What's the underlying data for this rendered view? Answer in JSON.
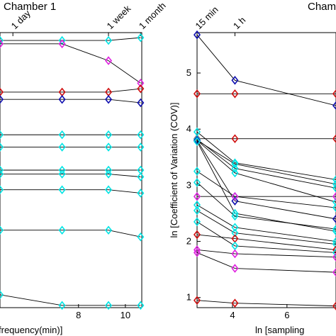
{
  "chart_data": [
    {
      "type": "line",
      "title": "Chamber 1",
      "xlabel": "frequency(min)]",
      "xlim": [
        4.65,
        10.7
      ],
      "ylim": [
        0.82,
        5.72
      ],
      "x_ticks": [
        8,
        10
      ],
      "top_ticks": [
        {
          "x": 5.2,
          "label": "1 day"
        },
        {
          "x": 9.28,
          "label": "1 week"
        },
        {
          "x": 10.65,
          "label": "1 month"
        }
      ],
      "x": [
        4.65,
        7.3,
        9.28,
        10.65
      ],
      "series": [
        {
          "color": "#00e5e5",
          "values": [
            5.58,
            5.58,
            5.58,
            5.63
          ]
        },
        {
          "color": "#e020e0",
          "values": [
            5.52,
            5.52,
            5.22,
            4.82
          ]
        },
        {
          "color": "#d01010",
          "values": [
            4.66,
            4.66,
            4.66,
            4.72
          ]
        },
        {
          "color": "#1010b0",
          "values": [
            4.53,
            4.53,
            4.53,
            4.47
          ]
        },
        {
          "color": "#00e5e5",
          "values": [
            3.9,
            3.9,
            3.9,
            3.9
          ]
        },
        {
          "color": "#00e5e5",
          "values": [
            3.68,
            3.68,
            3.68,
            3.68
          ]
        },
        {
          "color": "#00e5e5",
          "values": [
            3.27,
            3.27,
            3.27,
            3.27
          ]
        },
        {
          "color": "#00e5e5",
          "values": [
            3.2,
            3.2,
            3.2,
            3.15
          ]
        },
        {
          "color": "#00e5e5",
          "values": [
            2.92,
            2.92,
            2.92,
            2.86
          ]
        },
        {
          "color": "#00e5e5",
          "values": [
            2.2,
            2.2,
            2.2,
            2.08
          ]
        },
        {
          "color": "#00e5e5",
          "values": [
            1.05,
            0.86,
            0.86,
            0.86
          ]
        }
      ]
    },
    {
      "type": "line",
      "title": "Chamb",
      "xlabel": "ln [sampling",
      "ylabel": "ln [Coefficient of Variation (COV)]",
      "xlim": [
        2.7,
        7.8
      ],
      "ylim": [
        0.82,
        5.72
      ],
      "y_ticks": [
        1,
        2,
        3,
        4,
        5
      ],
      "x_ticks": [
        4,
        6
      ],
      "top_ticks": [
        {
          "x": 2.7,
          "label": "15 min"
        },
        {
          "x": 4.09,
          "label": "1 h"
        }
      ],
      "x": [
        2.7,
        4.09,
        7.8
      ],
      "series": [
        {
          "color": "#1010b0",
          "values": [
            5.68,
            4.87,
            4.42
          ]
        },
        {
          "color": "#d01010",
          "values": [
            4.63,
            4.63,
            4.63
          ]
        },
        {
          "color": "#d01010",
          "values": [
            3.83,
            3.83,
            3.83
          ]
        },
        {
          "color": "#00e5e5",
          "values": [
            3.95,
            3.4,
            3.1
          ]
        },
        {
          "color": "#00e5e5",
          "values": [
            3.8,
            3.38,
            3.02
          ]
        },
        {
          "color": "#00e5e5",
          "values": [
            3.82,
            3.3,
            2.95
          ]
        },
        {
          "color": "#00e5e5",
          "values": [
            3.8,
            3.22,
            2.7
          ]
        },
        {
          "color": "#1010b0",
          "values": [
            3.8,
            2.72,
            2.4
          ]
        },
        {
          "color": "#00e5e5",
          "values": [
            3.78,
            2.5,
            2.18
          ]
        },
        {
          "color": "#00e5e5",
          "values": [
            3.25,
            2.8,
            2.6
          ]
        },
        {
          "color": "#e020e0",
          "values": [
            2.8,
            2.8,
            2.8
          ]
        },
        {
          "color": "#00e5e5",
          "values": [
            3.05,
            2.45,
            2.22
          ]
        },
        {
          "color": "#00e5e5",
          "values": [
            2.65,
            2.25,
            2.0
          ]
        },
        {
          "color": "#00e5e5",
          "values": [
            2.55,
            2.15,
            1.95
          ]
        },
        {
          "color": "#d01010",
          "values": [
            2.12,
            2.05,
            1.85
          ]
        },
        {
          "color": "#00e5e5",
          "values": [
            2.35,
            1.92,
            1.8
          ]
        },
        {
          "color": "#e020e0",
          "values": [
            1.85,
            1.78,
            1.72
          ]
        },
        {
          "color": "#e020e0",
          "values": [
            1.8,
            1.52,
            1.45
          ]
        },
        {
          "color": "#d01010",
          "values": [
            0.95,
            0.9,
            0.85
          ]
        }
      ]
    }
  ]
}
